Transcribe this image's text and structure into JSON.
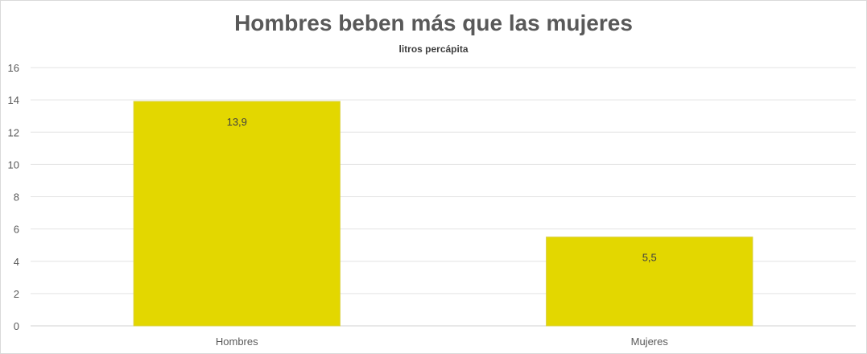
{
  "chart_data": {
    "type": "bar",
    "title": "Hombres beben más que las mujeres",
    "subtitle": "litros percápita",
    "categories": [
      "Hombres",
      "Mujeres"
    ],
    "values": [
      13.9,
      5.5
    ],
    "data_labels": [
      "13,9",
      "5,5"
    ],
    "ylim": [
      0,
      16
    ],
    "yticks": [
      0,
      2,
      4,
      6,
      8,
      10,
      12,
      14,
      16
    ],
    "xlabel": "",
    "ylabel": "",
    "grid": true,
    "legend": "none",
    "bar_color": "#e3d700"
  }
}
